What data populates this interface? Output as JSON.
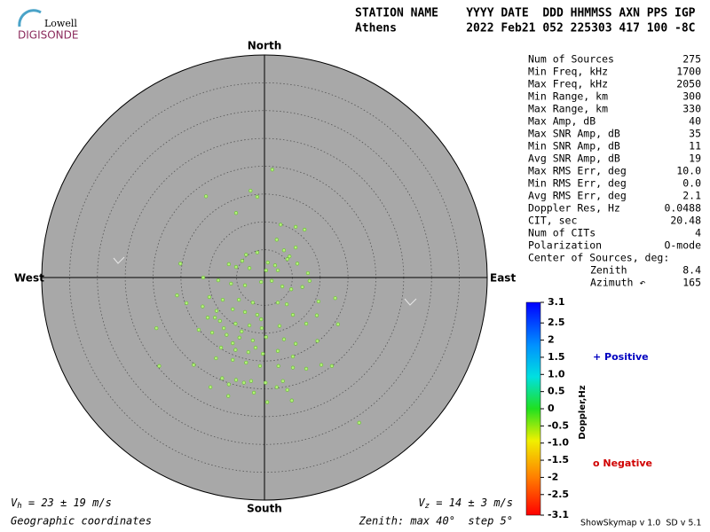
{
  "logo": {
    "top": "Lowell",
    "bottom": "DIGISONDE"
  },
  "header": {
    "line1": "STATION NAME    YYYY DATE  DDD HHMMSS AXN PPS IGP",
    "line2": "Athens          2022 Feb21 052 225303 417 100 -8C"
  },
  "stats": [
    [
      "Num of Sources",
      "275"
    ],
    [
      "Min Freq, kHz",
      "1700"
    ],
    [
      "Max Freq, kHz",
      "2050"
    ],
    [
      "Min Range, km",
      "300"
    ],
    [
      "Max Range, km",
      "330"
    ],
    [
      "Max Amp, dB",
      "40"
    ],
    [
      "Max SNR Amp, dB",
      "35"
    ],
    [
      "Min SNR Amp, dB",
      "11"
    ],
    [
      "Avg SNR Amp, dB",
      "19"
    ],
    [
      "Max RMS Err, deg",
      "10.0"
    ],
    [
      "Min RMS Err, deg",
      "0.0"
    ],
    [
      "Avg RMS Err, deg",
      "2.1"
    ],
    [
      "Doppler Res, Hz",
      "0.0488"
    ],
    [
      "CIT, sec",
      "20.48"
    ],
    [
      "Num of CITs",
      "4"
    ],
    [
      "Polarization",
      "O-mode"
    ]
  ],
  "center": {
    "title": "Center of Sources, deg:",
    "zenith_label": "Zenith",
    "zenith": "8.4",
    "azimuth_label": "Azimuth ↶",
    "azimuth": "165"
  },
  "footer": {
    "vh": {
      "symbol": "V",
      "sub": "h",
      "text": " = 23 ± 19 m/s"
    },
    "vz": {
      "symbol": "V",
      "sub": "z",
      "text": " = 14 ± 3 m/s"
    },
    "coords": "Geographic coordinates",
    "zenith": "Zenith: max 40°  step 5°",
    "version": "ShowSkymap v 1.0  SD v 5.1"
  },
  "chart_data": {
    "type": "scatter",
    "directions": {
      "north": "North",
      "south": "South",
      "east": "East",
      "west": "West"
    },
    "x": [
      1.4,
      -2.5,
      -10.5,
      -1.3,
      -5.1,
      2.9,
      5.6,
      7.2,
      2.2,
      5.6,
      3.5,
      -1.3,
      -3.3,
      4.5,
      -4.0,
      -15.1,
      0.6,
      1.9,
      4.1,
      5.9,
      -6.4,
      -5.1,
      -2.7,
      0.3,
      2.4,
      7.8,
      8.1,
      -11.0,
      -8.3,
      -6.0,
      -3.5,
      -0.6,
      1.3,
      3.2,
      4.8,
      6.8,
      -15.7,
      -9.9,
      -7.5,
      -4.6,
      -2.1,
      2.4,
      4.0,
      12.7,
      -14.0,
      -11.1,
      -8.6,
      -5.7,
      -3.5,
      -1.3,
      5.1,
      9.4,
      9.7,
      -10.2,
      -8.0,
      -5.2,
      -2.7,
      -0.5,
      2.7,
      7.5,
      13.2,
      -19.4,
      -11.8,
      -9.4,
      -6.8,
      -4.5,
      -2.1,
      0.3,
      3.5,
      5.6,
      9.5,
      -7.8,
      -5.2,
      -2.9,
      -0.3,
      2.4,
      5.1,
      -8.7,
      -5.7,
      -3.3,
      -0.8,
      2.5,
      5.1,
      7.5,
      10.2,
      12.1,
      -18.9,
      -12.7,
      -7.6,
      -5.1,
      -2.4,
      0.2,
      3.3,
      -9.7,
      -6.4,
      -3.7,
      2.2,
      4.1,
      -1.9,
      -6.5,
      0.5,
      4.9,
      17.0,
      -8.9,
      -7.3,
      -5.7,
      -4.1,
      -1.6,
      -0.6
    ],
    "y": [
      19.4,
      15.6,
      14.6,
      14.5,
      11.6,
      9.5,
      9.1,
      8.6,
      6.8,
      5.4,
      4.9,
      4.5,
      4.1,
      3.8,
      3.0,
      2.5,
      2.7,
      2.2,
      3.3,
      2.5,
      2.4,
      1.9,
      1.7,
      1.3,
      1.3,
      0.8,
      -0.6,
      0,
      -0.5,
      -1.1,
      -1.4,
      -0.8,
      -0.6,
      -1.6,
      -2.1,
      -1.7,
      -3.2,
      -3.5,
      -4.0,
      -4.0,
      -4.5,
      -4.5,
      -4.8,
      -3.7,
      -4.6,
      -5.2,
      -6.0,
      -5.7,
      -6.2,
      -6.7,
      -6.7,
      -6.8,
      -4.3,
      -7.2,
      -7.8,
      -8.3,
      -8.6,
      -9.1,
      -8.7,
      -8.3,
      -8.4,
      -9.1,
      -9.4,
      -9.9,
      -10.3,
      -10.8,
      -11.3,
      -10.7,
      -11.1,
      -11.9,
      -11.4,
      -12.6,
      -13.0,
      -13.4,
      -13.7,
      -13.2,
      -14.2,
      -14.5,
      -14.8,
      -15.3,
      -15.9,
      -15.9,
      -16.2,
      -16.4,
      -15.7,
      -15.9,
      -15.9,
      -15.7,
      -18.1,
      -18.4,
      -18.6,
      -18.9,
      -18.6,
      -19.7,
      -19.2,
      -18.9,
      -19.7,
      -20.2,
      -20.7,
      -21.3,
      -22.4,
      -22.1,
      -26.1,
      -7.2,
      -9.1,
      -11.8,
      -9.7,
      -12.6,
      -7.5
    ],
    "color": "#b4f07a",
    "xlim": [
      -40,
      40
    ],
    "ylim": [
      -40,
      40
    ],
    "rticks": [
      5,
      10,
      15,
      20,
      25,
      30,
      35
    ],
    "colorbar": {
      "title": "Doppler,Hz",
      "clim": [
        -3.1,
        3.1
      ],
      "ticks": [
        3.1,
        2.5,
        2,
        1.5,
        {
          "value": 1,
          "label": "1.0"
        },
        0.5,
        0,
        -0.5,
        {
          "value": -1,
          "label": "-1.0"
        },
        -1.5,
        -2,
        -2.5,
        -3.1
      ]
    },
    "legend": {
      "positive": "+ Positive",
      "negative": "o Negative"
    }
  }
}
